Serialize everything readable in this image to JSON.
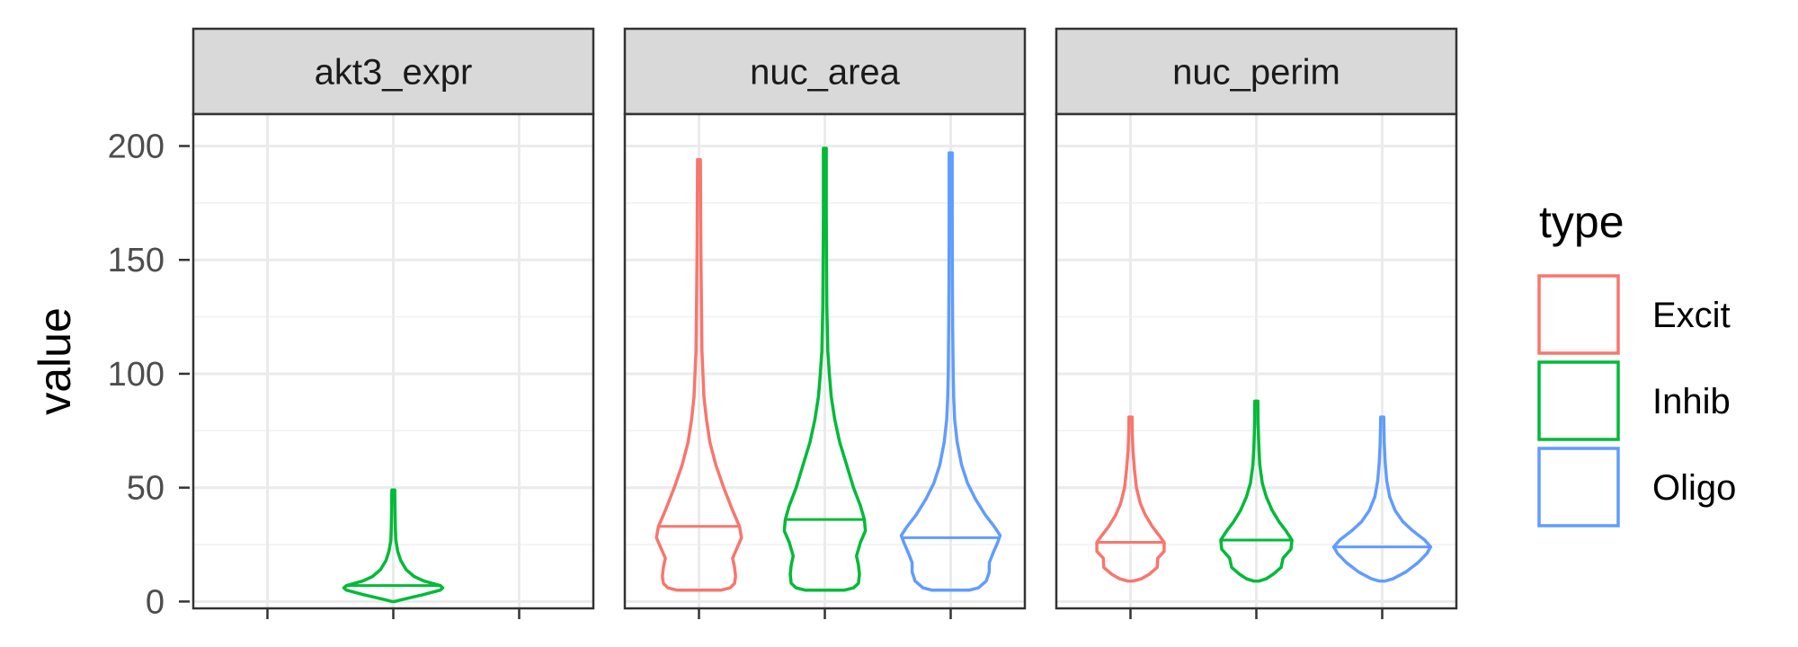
{
  "chart_data": {
    "type": "violin",
    "ylabel": "value",
    "ylim": [
      -3,
      214
    ],
    "yticks": [
      0,
      50,
      100,
      150,
      200
    ],
    "grid": true,
    "legend": {
      "title": "type",
      "position": "right",
      "entries": [
        "Excit",
        "Inhib",
        "Oligo"
      ]
    },
    "colors": {
      "Excit": "#F8766D",
      "Inhib": "#00BA38",
      "Oligo": "#619CFF"
    },
    "categories": [
      "Excit",
      "Inhib",
      "Oligo"
    ],
    "panels": [
      {
        "name": "akt3_expr",
        "violins": [
          {
            "type": "Inhib",
            "median": 7,
            "profile": [
              [
                0,
                0.02
              ],
              [
                1,
                0.2
              ],
              [
                3,
                0.6
              ],
              [
                5,
                0.95
              ],
              [
                6,
                1.0
              ],
              [
                7,
                0.95
              ],
              [
                9,
                0.62
              ],
              [
                11,
                0.42
              ],
              [
                14,
                0.26
              ],
              [
                18,
                0.15
              ],
              [
                22,
                0.09
              ],
              [
                27,
                0.05
              ],
              [
                33,
                0.04
              ],
              [
                40,
                0.035
              ],
              [
                49,
                0.03
              ]
            ]
          }
        ]
      },
      {
        "name": "nuc_area",
        "violins": [
          {
            "type": "Excit",
            "median": 33,
            "profile": [
              [
                5,
                0.45
              ],
              [
                6,
                0.63
              ],
              [
                8,
                0.72
              ],
              [
                11,
                0.74
              ],
              [
                15,
                0.72
              ],
              [
                19,
                0.68
              ],
              [
                23,
                0.76
              ],
              [
                28,
                0.86
              ],
              [
                33,
                0.82
              ],
              [
                40,
                0.68
              ],
              [
                50,
                0.5
              ],
              [
                60,
                0.34
              ],
              [
                70,
                0.22
              ],
              [
                80,
                0.15
              ],
              [
                90,
                0.1
              ],
              [
                100,
                0.08
              ],
              [
                110,
                0.06
              ],
              [
                130,
                0.05
              ],
              [
                150,
                0.04
              ],
              [
                170,
                0.035
              ],
              [
                194,
                0.03
              ]
            ]
          },
          {
            "type": "Inhib",
            "median": 36,
            "profile": [
              [
                5,
                0.4
              ],
              [
                6,
                0.58
              ],
              [
                8,
                0.68
              ],
              [
                12,
                0.7
              ],
              [
                16,
                0.68
              ],
              [
                20,
                0.64
              ],
              [
                26,
                0.72
              ],
              [
                31,
                0.82
              ],
              [
                36,
                0.8
              ],
              [
                42,
                0.72
              ],
              [
                50,
                0.58
              ],
              [
                60,
                0.44
              ],
              [
                70,
                0.3
              ],
              [
                80,
                0.2
              ],
              [
                90,
                0.13
              ],
              [
                100,
                0.09
              ],
              [
                110,
                0.06
              ],
              [
                130,
                0.04
              ],
              [
                150,
                0.035
              ],
              [
                170,
                0.03
              ],
              [
                199,
                0.03
              ]
            ]
          },
          {
            "type": "Oligo",
            "median": 28,
            "profile": [
              [
                5,
                0.38
              ],
              [
                6,
                0.56
              ],
              [
                9,
                0.72
              ],
              [
                13,
                0.78
              ],
              [
                17,
                0.78
              ],
              [
                21,
                0.85
              ],
              [
                26,
                0.95
              ],
              [
                29,
                1.0
              ],
              [
                33,
                0.88
              ],
              [
                38,
                0.7
              ],
              [
                45,
                0.5
              ],
              [
                52,
                0.34
              ],
              [
                60,
                0.22
              ],
              [
                70,
                0.13
              ],
              [
                80,
                0.08
              ],
              [
                90,
                0.06
              ],
              [
                100,
                0.05
              ],
              [
                120,
                0.04
              ],
              [
                140,
                0.035
              ],
              [
                170,
                0.03
              ],
              [
                197,
                0.03
              ]
            ]
          }
        ]
      },
      {
        "name": "nuc_perim",
        "violins": [
          {
            "type": "Excit",
            "median": 26,
            "profile": [
              [
                9,
                0.06
              ],
              [
                10,
                0.22
              ],
              [
                12,
                0.38
              ],
              [
                15,
                0.54
              ],
              [
                19,
                0.55
              ],
              [
                22,
                0.68
              ],
              [
                26,
                0.68
              ],
              [
                29,
                0.58
              ],
              [
                33,
                0.44
              ],
              [
                38,
                0.3
              ],
              [
                43,
                0.2
              ],
              [
                50,
                0.12
              ],
              [
                58,
                0.08
              ],
              [
                66,
                0.05
              ],
              [
                74,
                0.035
              ],
              [
                81,
                0.03
              ]
            ]
          },
          {
            "type": "Inhib",
            "median": 27,
            "profile": [
              [
                9,
                0.06
              ],
              [
                10,
                0.2
              ],
              [
                12,
                0.34
              ],
              [
                15,
                0.5
              ],
              [
                19,
                0.54
              ],
              [
                23,
                0.7
              ],
              [
                27,
                0.72
              ],
              [
                31,
                0.6
              ],
              [
                35,
                0.46
              ],
              [
                40,
                0.32
              ],
              [
                46,
                0.2
              ],
              [
                52,
                0.12
              ],
              [
                60,
                0.07
              ],
              [
                68,
                0.05
              ],
              [
                78,
                0.035
              ],
              [
                88,
                0.03
              ]
            ]
          },
          {
            "type": "Oligo",
            "median": 24,
            "profile": [
              [
                9,
                0.06
              ],
              [
                10,
                0.22
              ],
              [
                13,
                0.48
              ],
              [
                17,
                0.72
              ],
              [
                21,
                0.9
              ],
              [
                24,
                0.98
              ],
              [
                27,
                0.86
              ],
              [
                31,
                0.62
              ],
              [
                35,
                0.42
              ],
              [
                40,
                0.26
              ],
              [
                46,
                0.15
              ],
              [
                53,
                0.09
              ],
              [
                61,
                0.06
              ],
              [
                70,
                0.04
              ],
              [
                81,
                0.03
              ]
            ]
          }
        ]
      }
    ]
  }
}
